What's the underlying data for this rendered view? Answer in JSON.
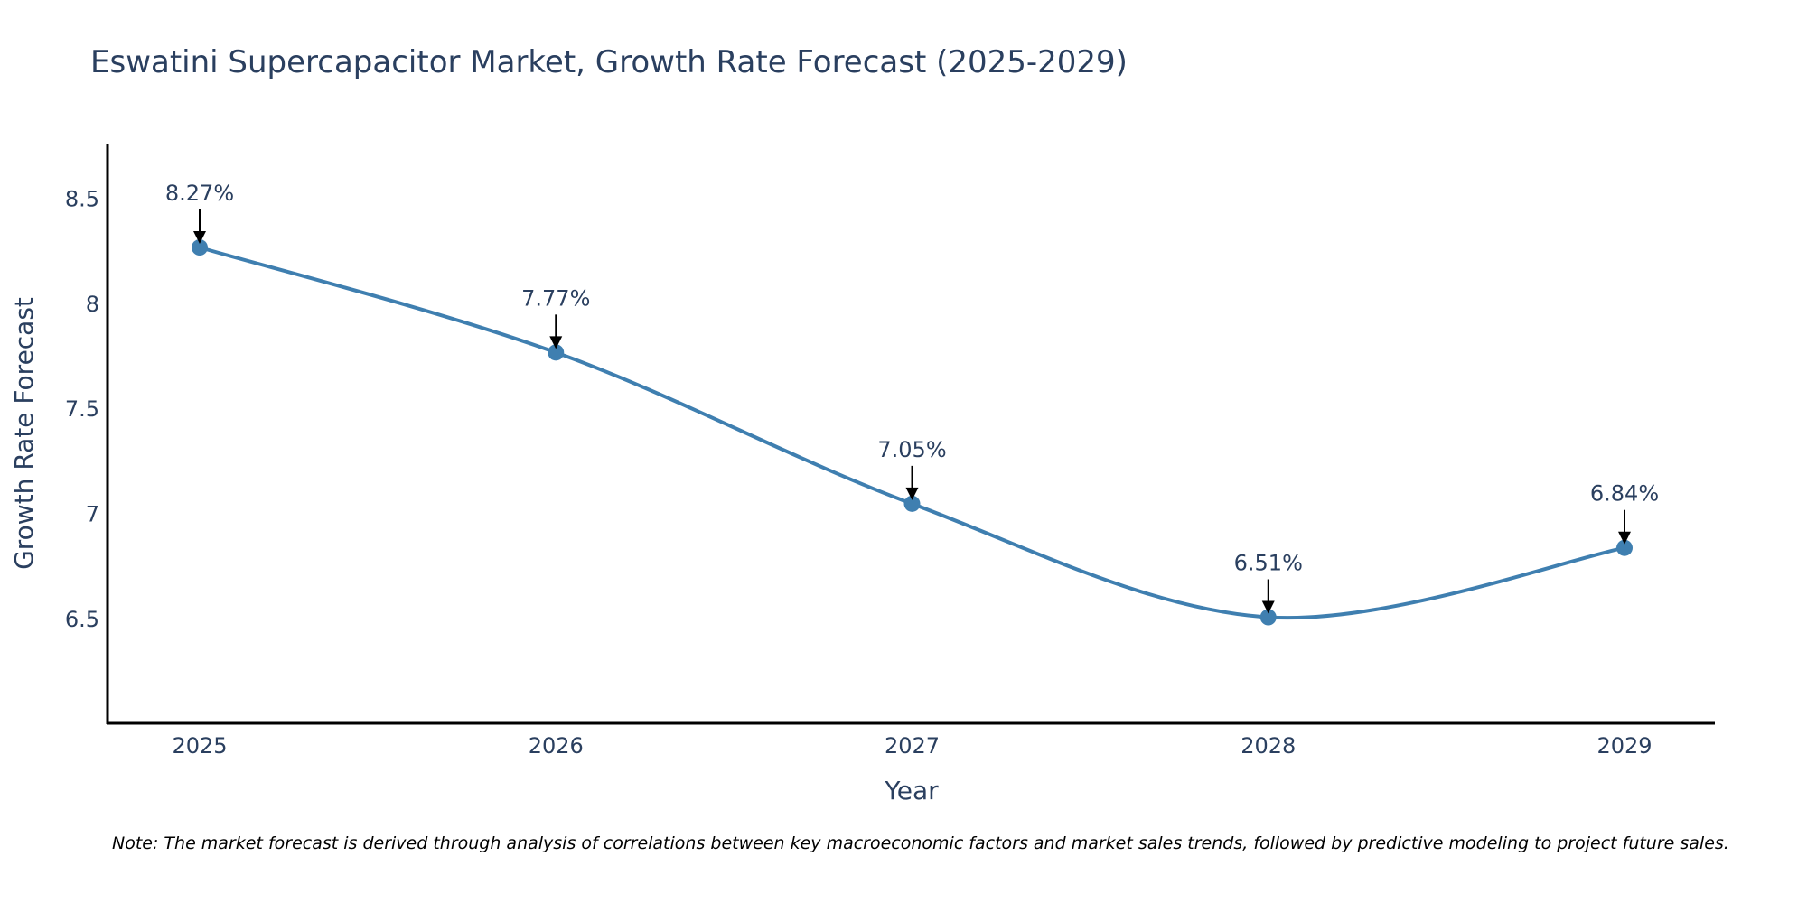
{
  "chart_data": {
    "type": "line",
    "title": "Eswatini Supercapacitor Market, Growth Rate Forecast (2025-2029)",
    "xlabel": "Year",
    "ylabel": "Growth Rate Forecast",
    "categories": [
      "2025",
      "2026",
      "2027",
      "2028",
      "2029"
    ],
    "series": [
      {
        "name": "Growth Rate Forecast",
        "values": [
          8.27,
          7.77,
          7.05,
          6.51,
          6.84
        ],
        "color": "#3f7fb0",
        "line_shape": "spline",
        "markers": true
      }
    ],
    "annotations": [
      "8.27%",
      "7.77%",
      "7.05%",
      "6.51%",
      "6.84%"
    ],
    "yticks": [
      6.5,
      7,
      7.5,
      8,
      8.5
    ],
    "ytick_labels": [
      "6.5",
      "7",
      "7.5",
      "8",
      "8.5"
    ],
    "ylim": [
      6.005,
      8.76
    ],
    "grid": false,
    "legend": "none",
    "note": "Note: The market forecast is derived through analysis of correlations between key macroeconomic factors and market sales trends, followed by predictive modeling to project future sales."
  }
}
